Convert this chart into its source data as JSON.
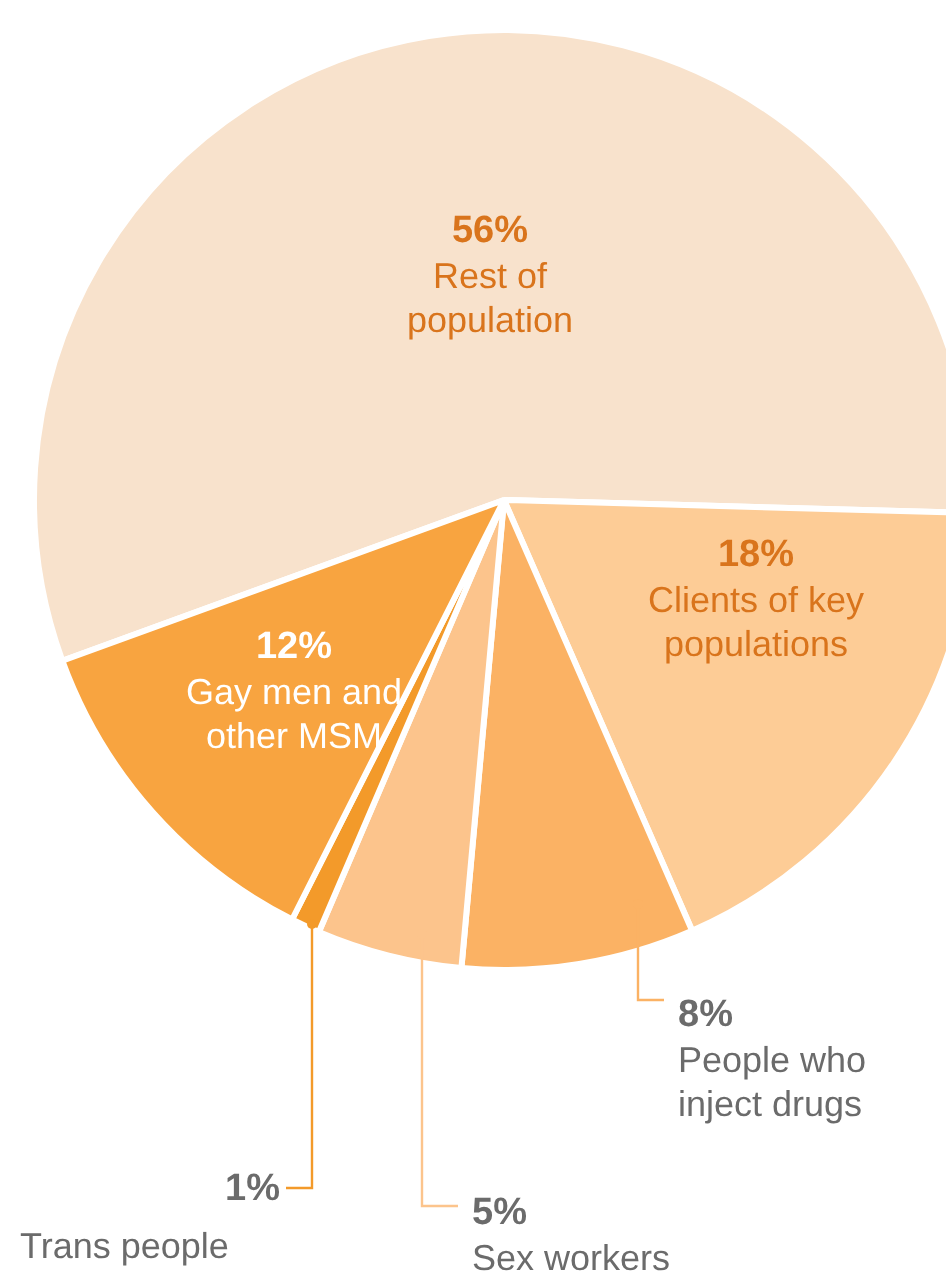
{
  "chart_data": {
    "type": "pie",
    "categories": [
      "Rest of population",
      "Clients of key populations",
      "People who inject drugs",
      "Sex workers",
      "Trans people",
      "Gay men and other MSM"
    ],
    "values": [
      56,
      18,
      8,
      5,
      1,
      12
    ],
    "value_labels": [
      "56%",
      "18%",
      "8%",
      "5%",
      "1%",
      "12%"
    ],
    "colors": [
      "#f8e2cc",
      "#fdcc96",
      "#fbb264",
      "#fcc48c",
      "#f39a2a",
      "#f8a440"
    ],
    "legend": false
  }
}
